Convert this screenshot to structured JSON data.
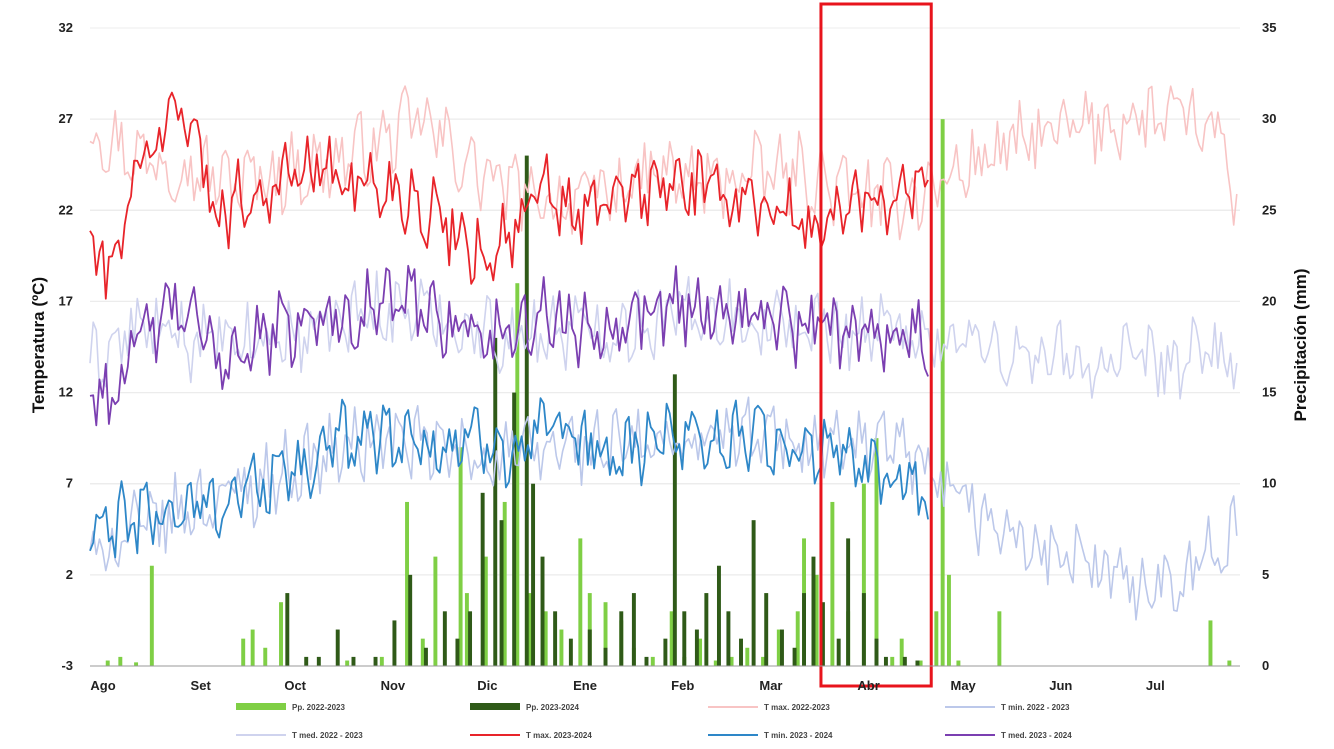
{
  "chart_data": {
    "type": "line",
    "ylabel": "Temperatura (ºC)",
    "y2label": "Precipitación (mm)",
    "ylim": [
      -3,
      32
    ],
    "y2lim": [
      0,
      35
    ],
    "yticks": [
      -3,
      2,
      7,
      12,
      17,
      22,
      27,
      32
    ],
    "y2ticks": [
      0,
      5,
      10,
      15,
      20,
      25,
      30,
      35
    ],
    "xlim": [
      0,
      365
    ],
    "months": [
      "Ago",
      "Set",
      "Oct",
      "Nov",
      "Dic",
      "Ene",
      "Feb",
      "Mar",
      "Abr",
      "May",
      "Jun",
      "Jul"
    ],
    "month_starts": [
      0,
      31,
      61,
      92,
      122,
      153,
      184,
      212,
      243,
      273,
      304,
      334
    ],
    "grid": true,
    "legend_position": "bottom",
    "highlight": {
      "from": 232,
      "to": 267,
      "color": "#e8141c"
    },
    "line_series": [
      {
        "key": "tmax_2223",
        "name": "T max. 2022-2023",
        "color": "#f8c4c4",
        "width": 1.6,
        "days": 365,
        "x": [
          0,
          15,
          30,
          45,
          60,
          75,
          90,
          105,
          120,
          135,
          150,
          165,
          180,
          195,
          210,
          225,
          240,
          255,
          270,
          285,
          300,
          315,
          330,
          345,
          360,
          364
        ],
        "y": [
          26.5,
          25,
          24.5,
          23.5,
          24,
          24.5,
          25.5,
          27,
          24.5,
          23,
          22.5,
          23,
          24,
          23.5,
          24,
          24,
          23,
          22.5,
          23.5,
          25,
          26,
          26.5,
          27,
          27,
          26,
          21
        ]
      },
      {
        "key": "tmed_2223",
        "name": "T med. 2022 - 2023",
        "color": "#cfd3ee",
        "width": 1.6,
        "days": 365,
        "x": [
          0,
          15,
          30,
          45,
          60,
          75,
          90,
          105,
          120,
          135,
          150,
          165,
          180,
          195,
          210,
          225,
          240,
          255,
          270,
          285,
          300,
          315,
          330,
          345,
          360,
          364
        ],
        "y": [
          13.5,
          15.5,
          15,
          14.5,
          15,
          15.5,
          16.5,
          16.5,
          15.5,
          15,
          15.5,
          15.5,
          16,
          16.5,
          16,
          15.5,
          15.5,
          15.5,
          15,
          14.5,
          14,
          13.5,
          13.5,
          13.5,
          14.5,
          12.5
        ]
      },
      {
        "key": "tmin_2223",
        "name": "T min. 2022 - 2023",
        "color": "#bcc8ea",
        "width": 1.6,
        "days": 365,
        "x": [
          0,
          15,
          30,
          45,
          60,
          75,
          90,
          105,
          120,
          135,
          150,
          165,
          180,
          195,
          210,
          225,
          240,
          255,
          270,
          285,
          300,
          315,
          330,
          345,
          360,
          364
        ],
        "y": [
          3,
          4.5,
          5.5,
          6.5,
          7.5,
          8.5,
          9.5,
          9,
          8.5,
          8.5,
          9,
          9,
          9,
          9.5,
          9.5,
          9.5,
          9,
          9,
          6.5,
          5,
          3.5,
          2.5,
          1.5,
          2,
          3.5,
          4.5
        ]
      },
      {
        "key": "tmax_2324",
        "name": "T max. 2023-2024",
        "color": "#e8242a",
        "width": 1.8,
        "days": 267,
        "x": [
          0,
          5,
          15,
          25,
          30,
          40,
          55,
          70,
          85,
          100,
          115,
          125,
          135,
          145,
          155,
          165,
          175,
          185,
          200,
          215,
          225,
          235,
          245,
          255,
          266
        ],
        "y": [
          21,
          18,
          24,
          27,
          28,
          22,
          23,
          24.5,
          23.5,
          23,
          21,
          19.5,
          21,
          23,
          21.5,
          22.5,
          23,
          23.5,
          23,
          22.5,
          21,
          21.5,
          22.5,
          23,
          24
        ]
      },
      {
        "key": "tmed_2324",
        "name": "T med. 2023 - 2024",
        "color": "#7b3fb1",
        "width": 1.8,
        "days": 267,
        "x": [
          0,
          5,
          15,
          25,
          30,
          40,
          55,
          70,
          85,
          100,
          115,
          125,
          135,
          145,
          155,
          165,
          175,
          185,
          200,
          215,
          225,
          235,
          245,
          255,
          266
        ],
        "y": [
          12.5,
          11.5,
          14.5,
          16.5,
          16.5,
          14,
          15,
          16,
          16.5,
          17,
          16,
          15,
          15.5,
          16.5,
          15.5,
          16,
          16.5,
          17,
          16.5,
          16,
          15.5,
          15.5,
          15.5,
          15.5,
          15
        ]
      },
      {
        "key": "tmin_2324",
        "name": "T min. 2023 - 2024",
        "color": "#2e87c8",
        "width": 1.8,
        "days": 267,
        "x": [
          0,
          5,
          15,
          25,
          30,
          40,
          55,
          70,
          85,
          100,
          115,
          125,
          135,
          145,
          155,
          165,
          175,
          185,
          200,
          215,
          225,
          235,
          245,
          255,
          266
        ],
        "y": [
          4,
          4.5,
          5,
          5.5,
          5.5,
          6,
          7,
          8,
          10,
          9.5,
          9,
          9.5,
          9,
          9.5,
          9,
          8.5,
          9,
          10,
          9.5,
          9.5,
          9,
          8.5,
          8,
          7.5,
          5
        ]
      }
    ],
    "bar_series": [
      {
        "key": "pp_2223",
        "name": "Pp. 2022-2023",
        "color": "#7fcf45",
        "events": [
          [
            5,
            0.3
          ],
          [
            9,
            0.5
          ],
          [
            14,
            0.2
          ],
          [
            19,
            5.5
          ],
          [
            48,
            1.5
          ],
          [
            51,
            2
          ],
          [
            55,
            1
          ],
          [
            60,
            3.5
          ],
          [
            81,
            0.3
          ],
          [
            92,
            0.5
          ],
          [
            100,
            9
          ],
          [
            105,
            1.5
          ],
          [
            109,
            6
          ],
          [
            117,
            12
          ],
          [
            119,
            4
          ],
          [
            125,
            6
          ],
          [
            131,
            9
          ],
          [
            135,
            21
          ],
          [
            139,
            4
          ],
          [
            144,
            3
          ],
          [
            149,
            2
          ],
          [
            155,
            7
          ],
          [
            158,
            4
          ],
          [
            163,
            3.5
          ],
          [
            168,
            2.5
          ],
          [
            172,
            1
          ],
          [
            178,
            0.5
          ],
          [
            184,
            3
          ],
          [
            188,
            0.5
          ],
          [
            193,
            1.5
          ],
          [
            198,
            0.3
          ],
          [
            203,
            0.5
          ],
          [
            208,
            1
          ],
          [
            213,
            0.5
          ],
          [
            218,
            2
          ],
          [
            224,
            3
          ],
          [
            226,
            7
          ],
          [
            230,
            5
          ],
          [
            235,
            9
          ],
          [
            240,
            3
          ],
          [
            245,
            10
          ],
          [
            249,
            12.5
          ],
          [
            254,
            0.5
          ],
          [
            257,
            1.5
          ],
          [
            263,
            0.3
          ],
          [
            268,
            3
          ],
          [
            270,
            30
          ],
          [
            272,
            5
          ],
          [
            275,
            0.3
          ],
          [
            288,
            3
          ],
          [
            355,
            2.5
          ],
          [
            361,
            0.3
          ]
        ]
      },
      {
        "key": "pp_2324",
        "name": "Pp. 2023-2024",
        "color": "#2f5a18",
        "events": [
          [
            62,
            4
          ],
          [
            68,
            0.5
          ],
          [
            72,
            0.5
          ],
          [
            78,
            2
          ],
          [
            83,
            0.5
          ],
          [
            90,
            0.5
          ],
          [
            96,
            2.5
          ],
          [
            101,
            5
          ],
          [
            106,
            1
          ],
          [
            112,
            3
          ],
          [
            116,
            1.5
          ],
          [
            120,
            3
          ],
          [
            124,
            9.5
          ],
          [
            128,
            18
          ],
          [
            130,
            8
          ],
          [
            134,
            15
          ],
          [
            138,
            28
          ],
          [
            140,
            10
          ],
          [
            143,
            6
          ],
          [
            147,
            3
          ],
          [
            152,
            1.5
          ],
          [
            158,
            2
          ],
          [
            163,
            1
          ],
          [
            168,
            3
          ],
          [
            172,
            4
          ],
          [
            176,
            0.5
          ],
          [
            182,
            1.5
          ],
          [
            185,
            16
          ],
          [
            188,
            3
          ],
          [
            192,
            2
          ],
          [
            195,
            4
          ],
          [
            199,
            5.5
          ],
          [
            202,
            3
          ],
          [
            206,
            1.5
          ],
          [
            210,
            8
          ],
          [
            214,
            4
          ],
          [
            219,
            2
          ],
          [
            223,
            1
          ],
          [
            226,
            4
          ],
          [
            229,
            6
          ],
          [
            232,
            3.5
          ],
          [
            237,
            1.5
          ],
          [
            240,
            7
          ],
          [
            245,
            4
          ],
          [
            249,
            1.5
          ],
          [
            252,
            0.5
          ],
          [
            258,
            0.5
          ],
          [
            262,
            0.3
          ]
        ]
      }
    ]
  },
  "legend": {
    "items": [
      {
        "label": "Pp. 2022-2023",
        "kind": "bar",
        "color": "#7fcf45"
      },
      {
        "label": "Pp. 2023-2024",
        "kind": "bar",
        "color": "#2f5a18"
      },
      {
        "label": "T max. 2022-2023",
        "kind": "line",
        "color": "#f8c4c4"
      },
      {
        "label": "T min. 2022 - 2023",
        "kind": "line",
        "color": "#bcc8ea"
      },
      {
        "label": "T med. 2022 - 2023",
        "kind": "line",
        "color": "#cfd3ee"
      },
      {
        "label": "T max. 2023-2024",
        "kind": "line",
        "color": "#e8242a"
      },
      {
        "label": "T min. 2023 - 2024",
        "kind": "line",
        "color": "#2e87c8"
      },
      {
        "label": "T med. 2023 - 2024",
        "kind": "line",
        "color": "#7b3fb1"
      }
    ]
  }
}
